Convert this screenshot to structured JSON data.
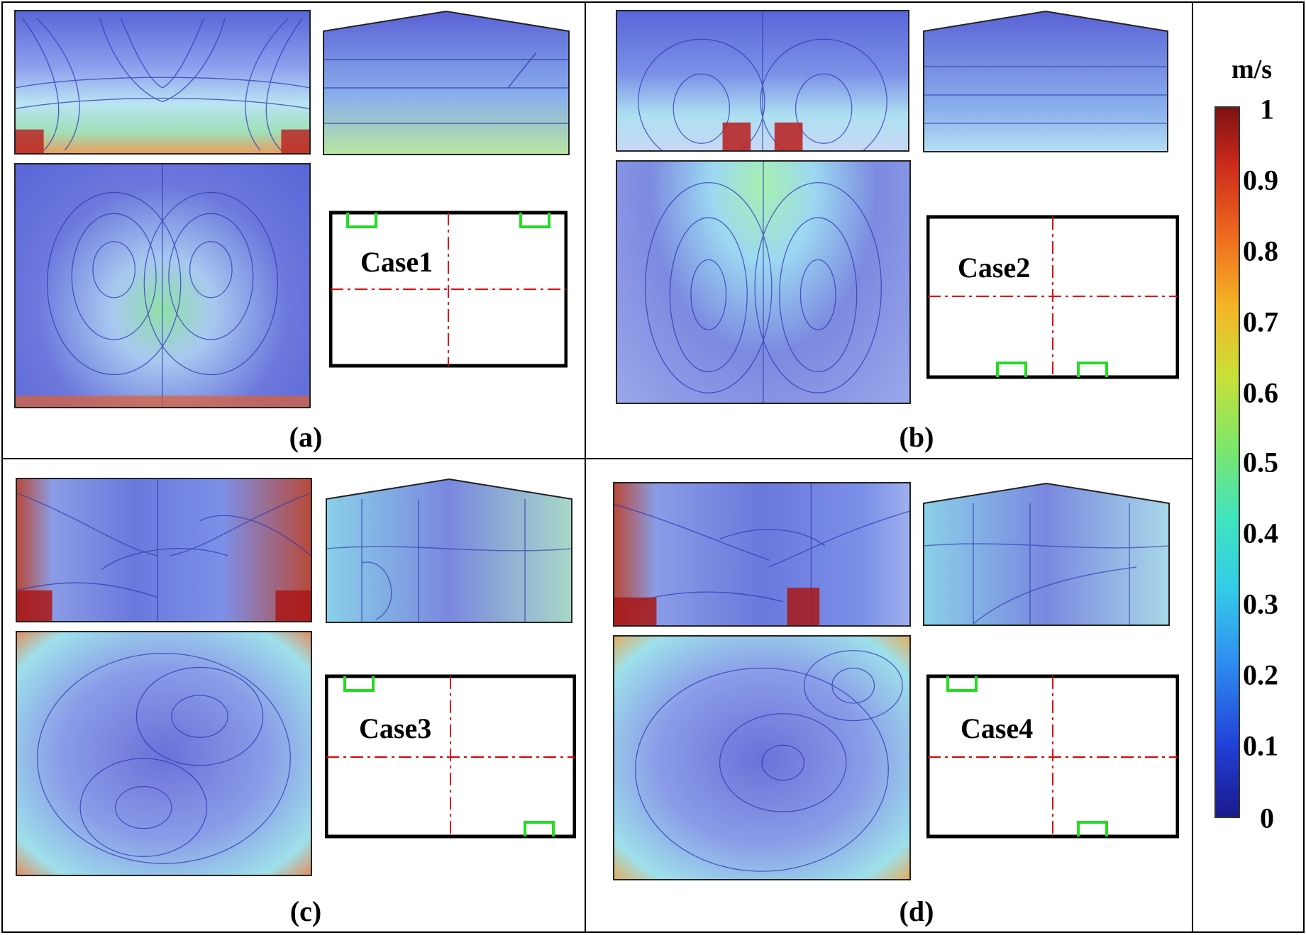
{
  "panels": [
    {
      "label": "(a)",
      "case": "Case1"
    },
    {
      "label": "(b)",
      "case": "Case2"
    },
    {
      "label": "(c)",
      "case": "Case3"
    },
    {
      "label": "(d)",
      "case": "Case4"
    }
  ],
  "colorbar": {
    "unit": "m/s",
    "ticks": [
      "1",
      "0.9",
      "0.8",
      "0.7",
      "0.6",
      "0.5",
      "0.4",
      "0.3",
      "0.2",
      "0.1",
      "0"
    ],
    "min": 0,
    "max": 1,
    "colors": [
      "#1a1a8c",
      "#2140d8",
      "#2f8ff0",
      "#34cbe8",
      "#3fe4c0",
      "#7ce66a",
      "#c9e039",
      "#f5b426",
      "#ee6a1e",
      "#cc2a1c",
      "#7e1111"
    ]
  },
  "schematic_colors": {
    "outline": "#000000",
    "dash": "#e00000",
    "inlet": "#22dd22"
  }
}
